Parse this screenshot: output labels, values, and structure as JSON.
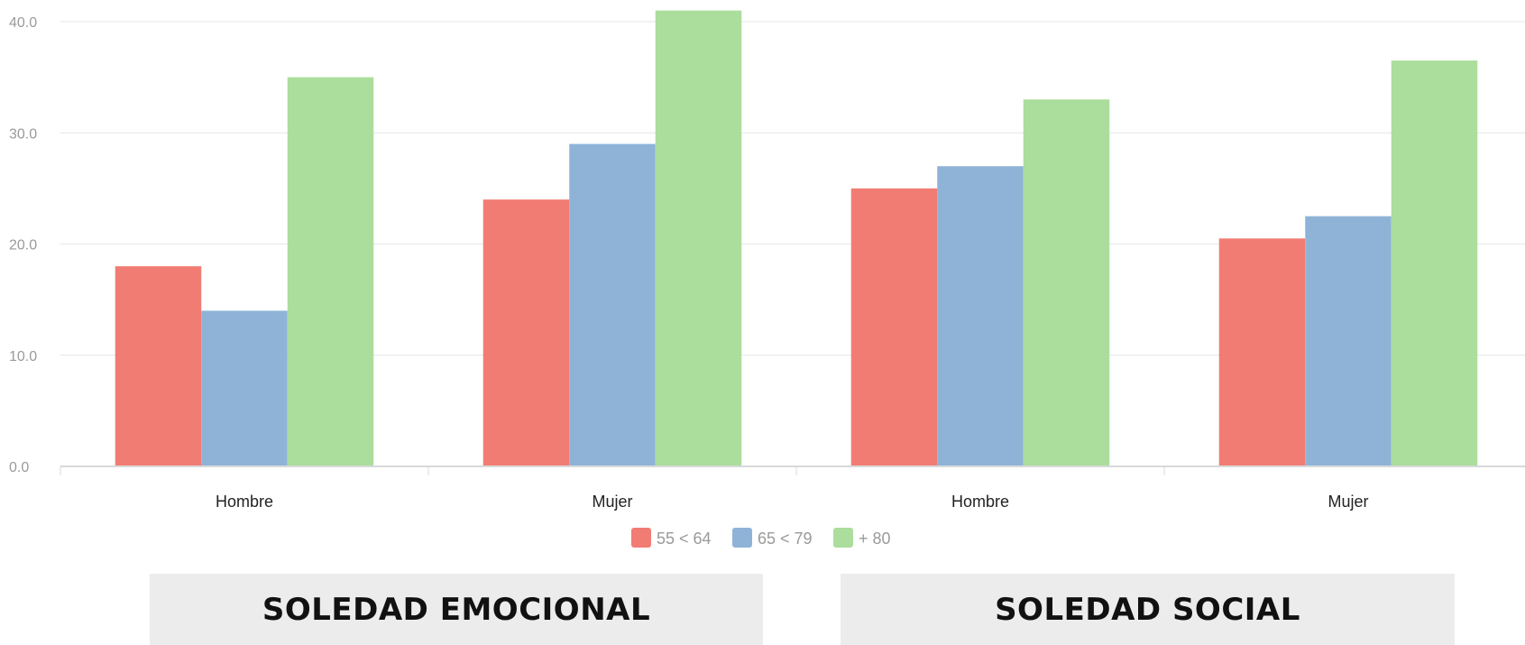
{
  "chart_data": {
    "type": "bar",
    "categories": [
      "Hombre",
      "Mujer",
      "Hombre",
      "Mujer"
    ],
    "series": [
      {
        "name": "55 < 64",
        "color": "#f17c73",
        "values": [
          18,
          24,
          25,
          20.5
        ]
      },
      {
        "name": "65 < 79",
        "color": "#8fb3d7",
        "values": [
          14,
          29,
          27,
          22.5
        ]
      },
      {
        "name": "+ 80",
        "color": "#abdd9c",
        "values": [
          35,
          41,
          33,
          36.5
        ]
      }
    ],
    "yticks": [
      "0.0",
      "10.0",
      "20.0",
      "30.0",
      "40.0"
    ],
    "ylim": [
      0,
      40
    ],
    "grid": true,
    "legend_position": "bottom-center",
    "group_titles": [
      "SOLEDAD EMOCIONAL",
      "SOLEDAD SOCIAL"
    ]
  }
}
